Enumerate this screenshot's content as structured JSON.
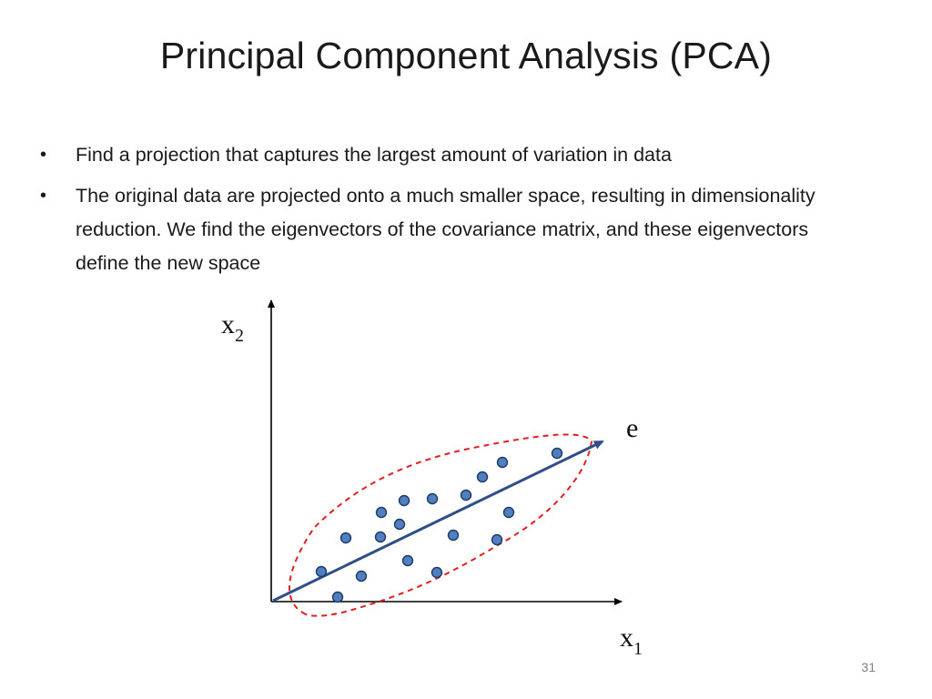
{
  "slide": {
    "title": "Principal Component Analysis (PCA)",
    "bullets": [
      "Find a projection that captures the largest amount of variation in data",
      "The original data are projected onto a much smaller space, resulting in dimensionality reduction. We find the eigenvectors of the covariance matrix, and these eigenvectors define the new space"
    ],
    "bullet_char": "•",
    "page_number": "31"
  },
  "diagram": {
    "x_axis_label": "x",
    "x_axis_subscript": "1",
    "y_axis_label": "x",
    "y_axis_subscript": "2",
    "eigenvector_label": "e",
    "colors": {
      "axis": "#000000",
      "eigenvector": "#2e4f87",
      "ellipse": "#e02020",
      "point_fill": "#4f7fbf",
      "point_stroke": "#1f3a66"
    }
  }
}
